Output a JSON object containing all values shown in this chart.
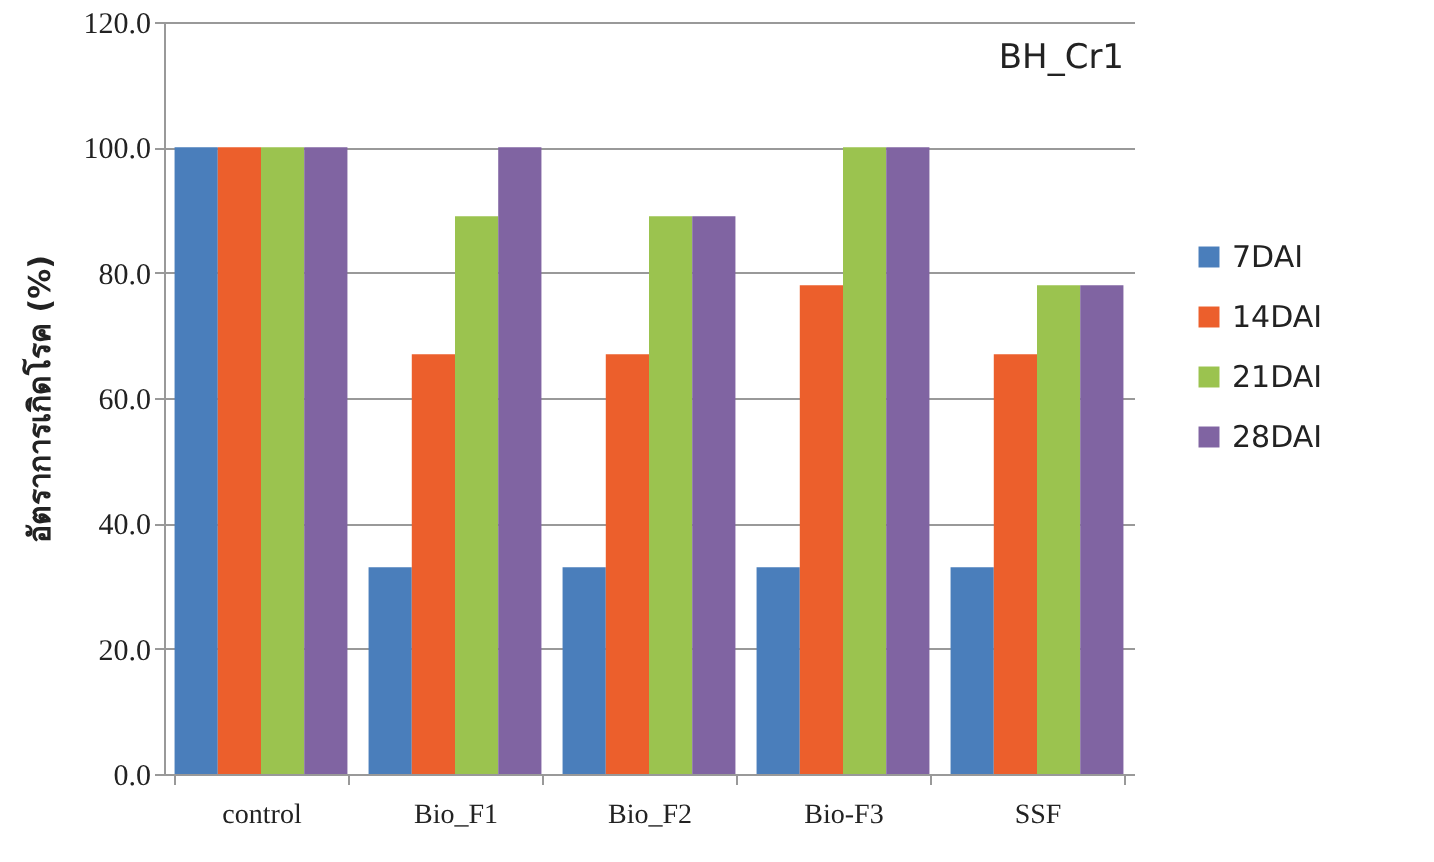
{
  "chart_data": {
    "type": "bar",
    "title": "BH_Cr1",
    "ylabel": "อัตราการเกิดโรค (%)",
    "categories": [
      "control",
      "Bio_F1",
      "Bio_F2",
      "Bio-F3",
      "SSF"
    ],
    "series": [
      {
        "name": "7DAI",
        "color": "#4a7ebb",
        "values": [
          100,
          33,
          33,
          33,
          33
        ]
      },
      {
        "name": "14DAI",
        "color": "#ec5f2c",
        "values": [
          100,
          67,
          67,
          78,
          67
        ]
      },
      {
        "name": "21DAI",
        "color": "#9bc34f",
        "values": [
          100,
          89,
          89,
          100,
          78
        ]
      },
      {
        "name": "28DAI",
        "color": "#8064a2",
        "values": [
          100,
          100,
          89,
          100,
          78
        ]
      }
    ],
    "ylim": [
      0,
      120
    ],
    "yticks": [
      {
        "value": 0,
        "label": "0.0"
      },
      {
        "value": 20,
        "label": "20.0"
      },
      {
        "value": 40,
        "label": "40.0"
      },
      {
        "value": 60,
        "label": "60.0"
      },
      {
        "value": 80,
        "label": "80.0"
      },
      {
        "value": 100,
        "label": "100.0"
      },
      {
        "value": 120,
        "label": "120.0"
      }
    ],
    "grid": "y",
    "legend": "right"
  }
}
